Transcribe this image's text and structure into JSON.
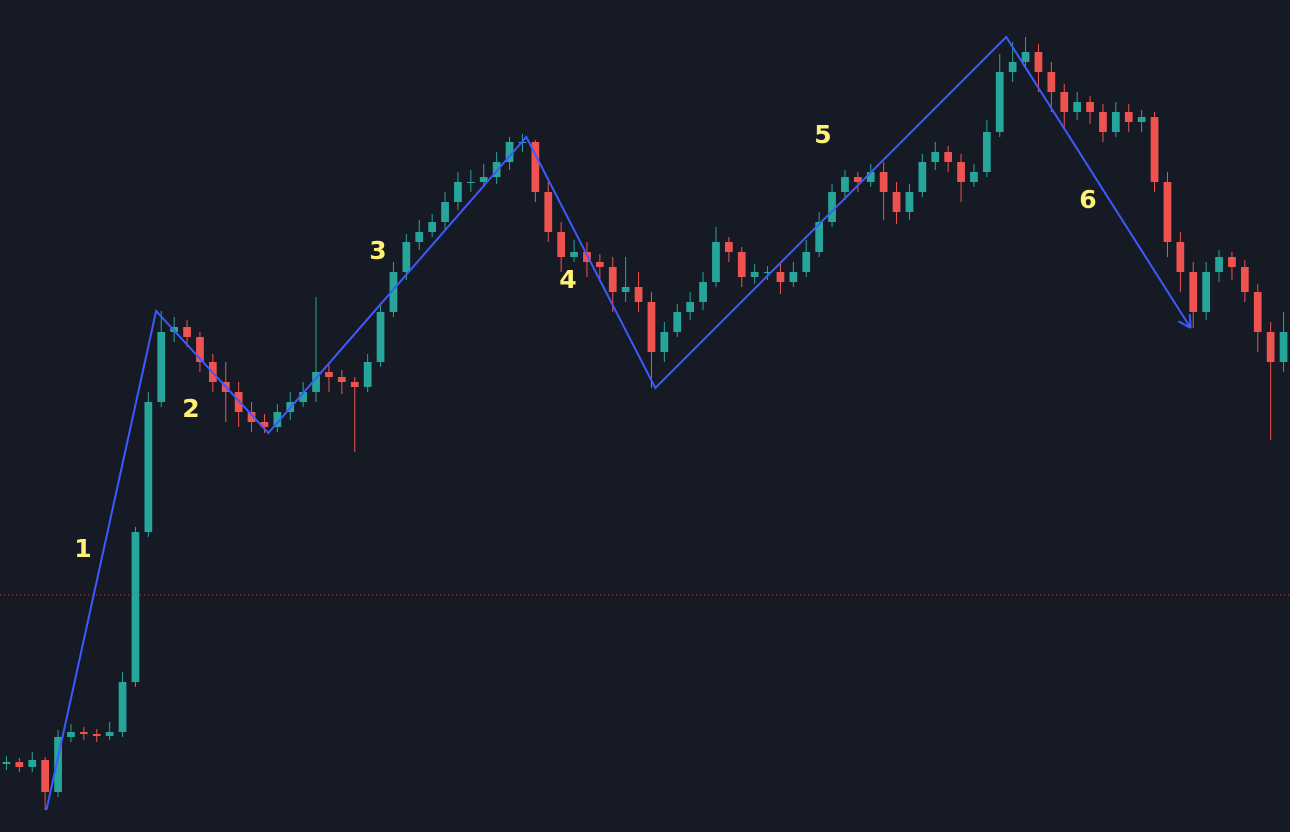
{
  "chart_data": {
    "type": "candlestick",
    "ylim": [
      0,
      832
    ],
    "up_color": "#26a69a",
    "down_color": "#ef5350",
    "open": [
      68,
      70,
      65,
      72,
      40,
      95,
      100,
      98,
      96,
      100,
      150,
      300,
      430,
      500,
      505,
      495,
      470,
      450,
      440,
      420,
      410,
      405,
      420,
      430,
      440,
      460,
      455,
      450,
      445,
      470,
      520,
      560,
      590,
      600,
      610,
      630,
      650,
      650,
      655,
      670,
      690,
      690,
      640,
      600,
      575,
      580,
      570,
      565,
      540,
      545,
      530,
      480,
      500,
      520,
      530,
      550,
      590,
      580,
      555,
      560,
      560,
      550,
      560,
      580,
      610,
      640,
      655,
      650,
      660,
      640,
      620,
      640,
      670,
      680,
      670,
      650,
      660,
      700,
      760,
      770,
      780,
      760,
      740,
      720,
      730,
      720,
      700,
      720,
      710,
      715,
      650,
      590,
      560,
      520,
      560,
      575,
      565,
      540,
      500,
      470
    ],
    "high": [
      76,
      74,
      80,
      75,
      102,
      108,
      105,
      103,
      110,
      160,
      305,
      440,
      521,
      515,
      512,
      500,
      478,
      470,
      450,
      430,
      418,
      428,
      440,
      450,
      535,
      470,
      462,
      455,
      478,
      528,
      570,
      598,
      612,
      618,
      640,
      660,
      662,
      668,
      680,
      695,
      698,
      692,
      650,
      610,
      592,
      590,
      578,
      575,
      575,
      560,
      540,
      510,
      528,
      540,
      560,
      605,
      595,
      585,
      568,
      566,
      568,
      570,
      592,
      620,
      648,
      662,
      660,
      668,
      670,
      650,
      648,
      678,
      690,
      686,
      678,
      668,
      712,
      778,
      790,
      795,
      788,
      770,
      748,
      740,
      736,
      728,
      730,
      728,
      722,
      720,
      660,
      600,
      570,
      570,
      582,
      580,
      572,
      548,
      510,
      520
    ],
    "low": [
      62,
      60,
      60,
      22,
      35,
      90,
      92,
      90,
      92,
      95,
      145,
      295,
      425,
      490,
      485,
      460,
      440,
      410,
      405,
      400,
      399,
      400,
      412,
      425,
      430,
      440,
      438,
      380,
      440,
      465,
      515,
      552,
      582,
      595,
      602,
      622,
      640,
      645,
      648,
      662,
      680,
      630,
      590,
      560,
      570,
      555,
      550,
      520,
      530,
      520,
      444,
      470,
      495,
      512,
      522,
      545,
      570,
      545,
      548,
      552,
      538,
      545,
      555,
      575,
      605,
      632,
      640,
      645,
      612,
      608,
      612,
      635,
      662,
      660,
      630,
      645,
      655,
      695,
      750,
      765,
      740,
      720,
      705,
      712,
      708,
      690,
      695,
      700,
      700,
      640,
      575,
      540,
      504,
      512,
      550,
      552,
      530,
      480,
      392,
      460
    ],
    "close": [
      70,
      65,
      72,
      40,
      95,
      100,
      98,
      96,
      100,
      150,
      300,
      430,
      500,
      505,
      495,
      470,
      450,
      440,
      420,
      410,
      405,
      420,
      430,
      440,
      460,
      455,
      450,
      445,
      470,
      520,
      560,
      590,
      600,
      610,
      630,
      650,
      650,
      655,
      670,
      690,
      690,
      640,
      600,
      575,
      580,
      570,
      565,
      540,
      545,
      530,
      480,
      500,
      520,
      530,
      550,
      590,
      580,
      555,
      560,
      560,
      550,
      560,
      580,
      610,
      640,
      655,
      650,
      660,
      640,
      620,
      640,
      670,
      680,
      670,
      650,
      660,
      700,
      760,
      770,
      780,
      760,
      740,
      720,
      730,
      720,
      700,
      720,
      710,
      715,
      650,
      590,
      560,
      520,
      560,
      575,
      565,
      540,
      500,
      470,
      500
    ],
    "price_line": 237,
    "price_line_color": "#ef5350",
    "wave": {
      "color": "#3d5afe",
      "x": [
        3.6,
        12.1,
        20.8,
        40.8,
        50.8,
        78.0,
        92.3
      ],
      "y": [
        22,
        521,
        399,
        695,
        444,
        795,
        504
      ],
      "labels": [
        "1",
        "2",
        "3",
        "4",
        "5",
        "6"
      ]
    }
  }
}
